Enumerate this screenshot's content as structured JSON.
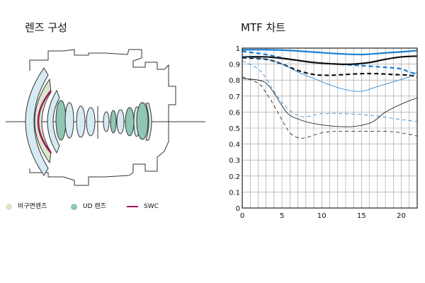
{
  "lens_section": {
    "title": "렌즈 구성",
    "legend": [
      {
        "label": "비구면렌즈",
        "color": "#d9e8cd"
      },
      {
        "label": "UD 렌즈",
        "color": "#8fc7b4"
      },
      {
        "label": "SWC",
        "color": "#a0155e"
      }
    ]
  },
  "mtf_section": {
    "title": "MTF 차트"
  },
  "chart_data": {
    "type": "line",
    "title": "MTF 차트",
    "xlabel": "",
    "ylabel": "",
    "xlim": [
      0,
      22
    ],
    "ylim": [
      0,
      1
    ],
    "x_ticks": [
      0,
      5,
      10,
      15,
      20
    ],
    "y_ticks": [
      0,
      0.1,
      0.2,
      0.3,
      0.4,
      0.5,
      0.6,
      0.7,
      0.8,
      0.9,
      1
    ],
    "grid": true,
    "series": [
      {
        "color": "#1a7fd4",
        "style": "solid-thick",
        "x": [
          0,
          3,
          6,
          9,
          12,
          15,
          18,
          21,
          22
        ],
        "y": [
          0.99,
          0.99,
          0.985,
          0.975,
          0.965,
          0.96,
          0.97,
          0.98,
          0.985
        ]
      },
      {
        "color": "#1a7fd4",
        "style": "dashed-thick",
        "x": [
          0,
          3,
          6,
          9,
          12,
          15,
          18,
          20,
          21,
          22
        ],
        "y": [
          0.98,
          0.96,
          0.93,
          0.91,
          0.9,
          0.89,
          0.88,
          0.87,
          0.85,
          0.84
        ]
      },
      {
        "color": "#111111",
        "style": "solid-thick",
        "x": [
          0,
          3,
          6,
          9,
          12,
          14,
          16,
          18,
          20,
          22
        ],
        "y": [
          0.945,
          0.945,
          0.93,
          0.91,
          0.9,
          0.9,
          0.91,
          0.93,
          0.945,
          0.95
        ]
      },
      {
        "color": "#111111",
        "style": "dashed-thick",
        "x": [
          0,
          3,
          5,
          7,
          9,
          11,
          13,
          15,
          17,
          19,
          21,
          22
        ],
        "y": [
          0.94,
          0.93,
          0.9,
          0.86,
          0.835,
          0.83,
          0.835,
          0.84,
          0.84,
          0.835,
          0.83,
          0.82
        ]
      },
      {
        "color": "#1a7fd4",
        "style": "solid-thin",
        "x": [
          0,
          3,
          5,
          7,
          9,
          11,
          13,
          15,
          17,
          19,
          21,
          22
        ],
        "y": [
          0.945,
          0.93,
          0.9,
          0.85,
          0.81,
          0.77,
          0.74,
          0.73,
          0.76,
          0.79,
          0.82,
          0.85
        ]
      },
      {
        "color": "#1a7fd4",
        "style": "dashed-thin",
        "x": [
          0,
          2,
          3,
          4,
          5,
          6,
          7,
          8,
          10,
          13,
          16,
          19,
          22
        ],
        "y": [
          0.92,
          0.87,
          0.81,
          0.73,
          0.66,
          0.61,
          0.58,
          0.57,
          0.59,
          0.59,
          0.58,
          0.56,
          0.54
        ]
      },
      {
        "color": "#111111",
        "style": "solid-thin",
        "x": [
          0,
          2,
          3,
          4,
          5,
          6,
          8,
          10,
          12,
          14,
          16,
          17,
          18,
          20,
          22
        ],
        "y": [
          0.81,
          0.8,
          0.78,
          0.72,
          0.64,
          0.58,
          0.54,
          0.52,
          0.51,
          0.51,
          0.53,
          0.56,
          0.6,
          0.65,
          0.69
        ]
      },
      {
        "color": "#111111",
        "style": "dashed-thin",
        "x": [
          0,
          2,
          3,
          4,
          5,
          6,
          7,
          8,
          10,
          12,
          15,
          18,
          20,
          22
        ],
        "y": [
          0.82,
          0.78,
          0.72,
          0.64,
          0.55,
          0.47,
          0.44,
          0.44,
          0.47,
          0.48,
          0.48,
          0.48,
          0.47,
          0.45
        ]
      }
    ]
  }
}
